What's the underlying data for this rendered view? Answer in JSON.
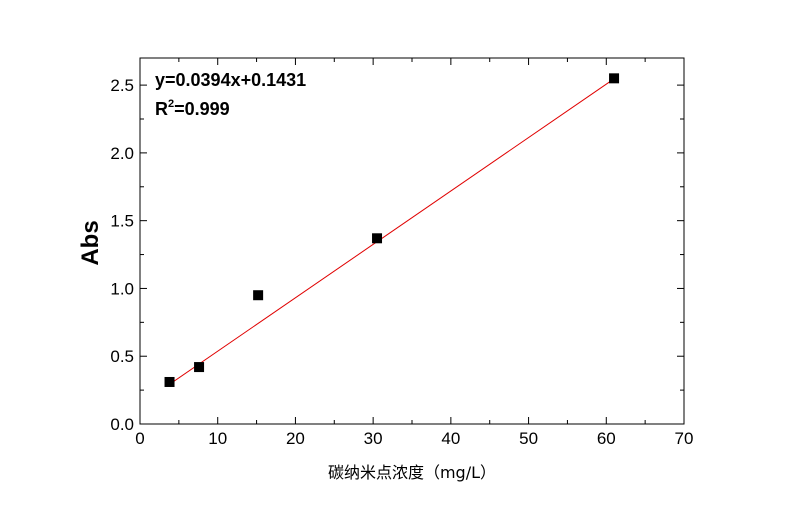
{
  "chart_data": {
    "type": "scatter",
    "title": "",
    "xlabel": "碳纳米点浓度（mg/L）",
    "ylabel": "Abs",
    "xlim": [
      0,
      70
    ],
    "ylim": [
      0,
      2.7
    ],
    "x_ticks": [
      "0",
      "10",
      "20",
      "30",
      "40",
      "50",
      "60",
      "70"
    ],
    "y_ticks": [
      "0.0",
      "0.5",
      "1.0",
      "1.5",
      "2.0",
      "2.5"
    ],
    "grid": false,
    "legend": "none",
    "points": [
      {
        "x": 3.8,
        "y": 0.31
      },
      {
        "x": 7.6,
        "y": 0.42
      },
      {
        "x": 15.2,
        "y": 0.95
      },
      {
        "x": 30.5,
        "y": 1.37
      },
      {
        "x": 61.0,
        "y": 2.55
      }
    ],
    "fit": {
      "slope": 0.0394,
      "intercept": 0.1431,
      "x_range": [
        3.8,
        61.0
      ]
    },
    "annotation": {
      "equation": "y=0.0394x+0.1431",
      "r2_prefix": "R",
      "r2_sup": "2",
      "r2_value": "=0.999"
    },
    "colors": {
      "points": "#000000",
      "fit_line": "#e00000",
      "axes": "#000000"
    }
  }
}
